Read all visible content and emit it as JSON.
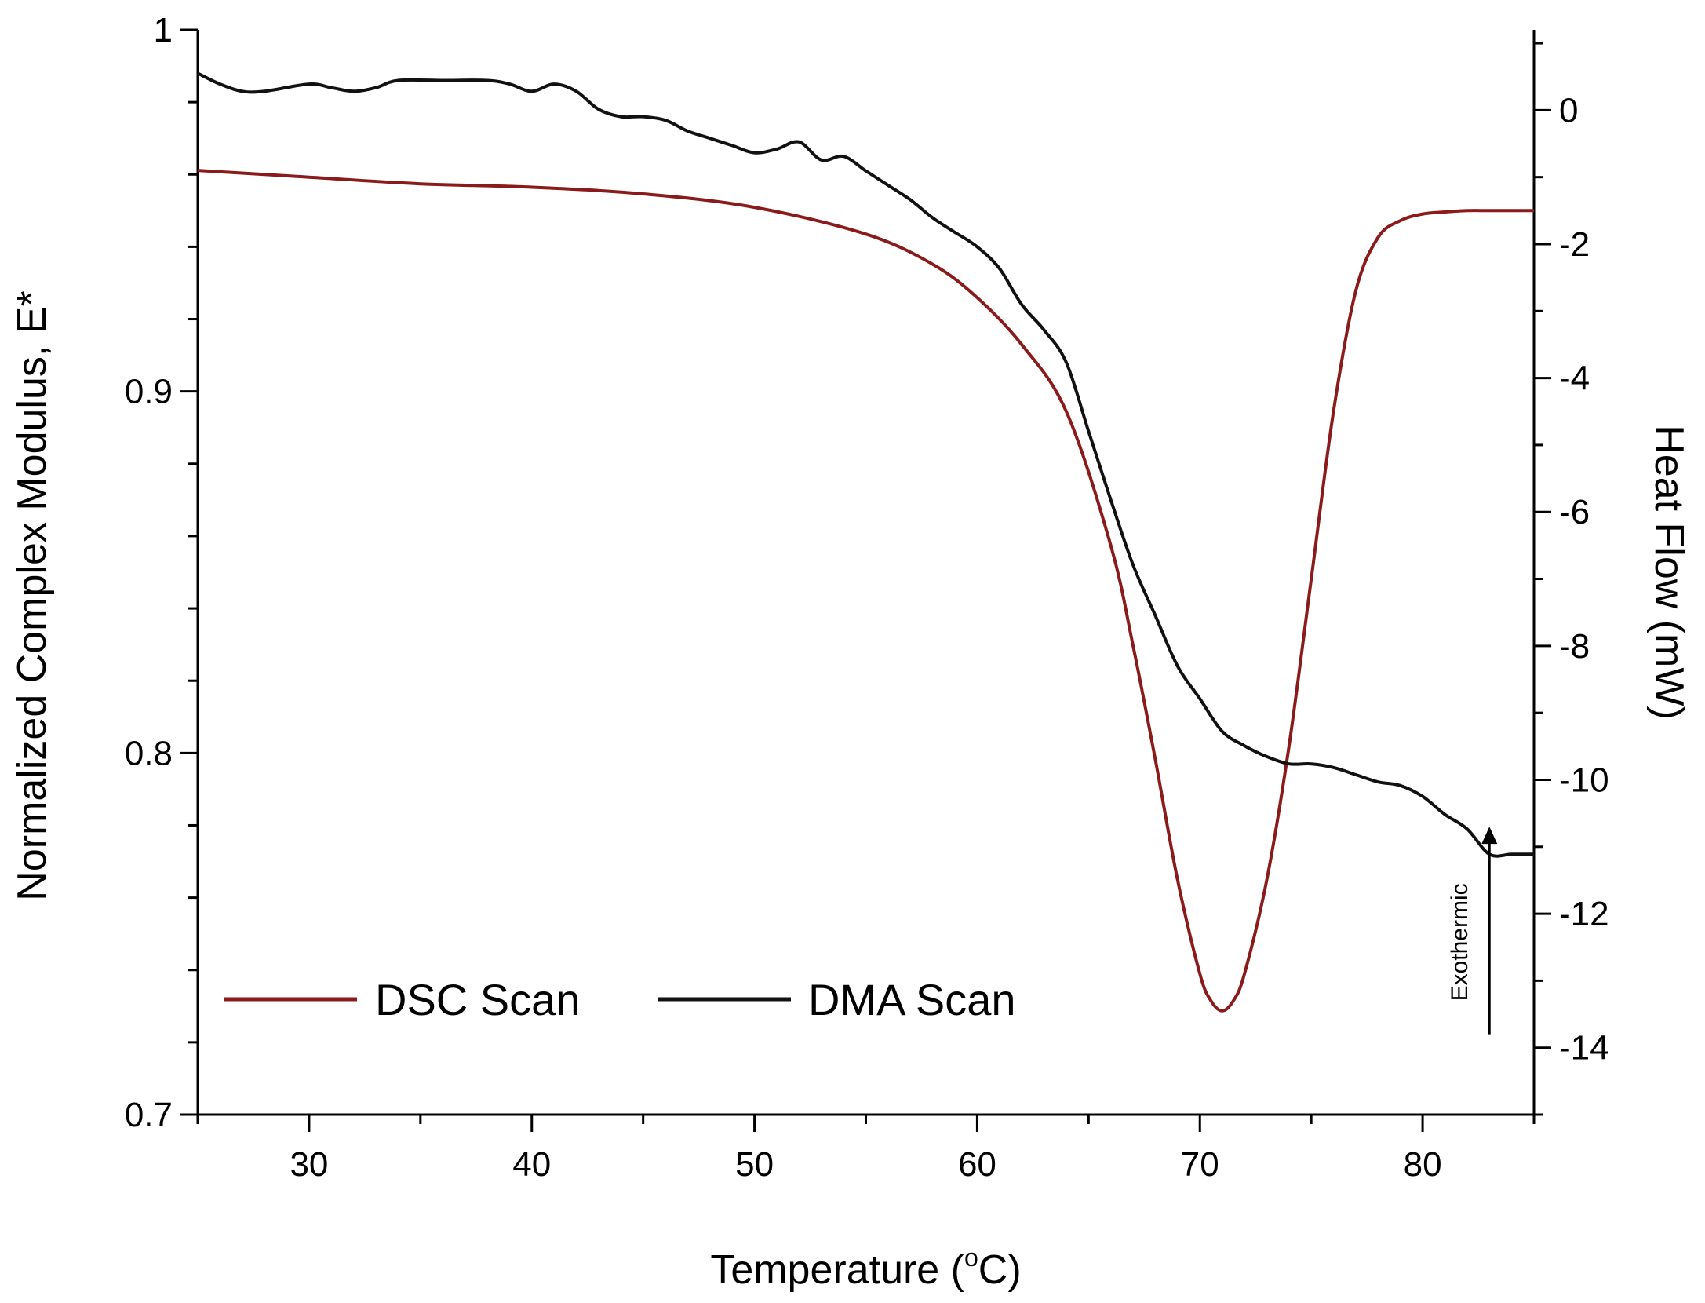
{
  "chart_data": {
    "type": "line",
    "title": "",
    "xlabel": "Temperature (°C)",
    "xlabel_parts": {
      "before": "Temperature (",
      "superscript": "o",
      "after": "C)"
    },
    "ylabel": "Normalized Complex Modulus, E*",
    "y2label": "Heat Flow (mW)",
    "xlim": [
      25,
      85
    ],
    "ylim": [
      0.7,
      1.0
    ],
    "y2lim": [
      -15,
      1.2
    ],
    "x_ticks": [
      30,
      40,
      50,
      60,
      70,
      80
    ],
    "x_tick_labels": [
      "30",
      "40",
      "50",
      "60",
      "70",
      "80"
    ],
    "y_ticks": [
      0.7,
      0.8,
      0.9,
      1.0
    ],
    "y_tick_labels": [
      "0.7",
      "0.8",
      "0.9",
      "1"
    ],
    "y2_ticks": [
      0,
      -2,
      -4,
      -6,
      -8,
      -10,
      -12,
      -14
    ],
    "y2_tick_labels": [
      "0",
      "-2",
      "-4",
      "-6",
      "-8",
      "-10",
      "-12",
      "-14"
    ],
    "grid": false,
    "legend_position": "bottom-left",
    "annotation": {
      "text": "Exothermic",
      "arrow": "up",
      "x": 83,
      "y2_from": -13.8,
      "y2_to": -10.7
    },
    "series": [
      {
        "name": "DSC Scan",
        "axis": "right",
        "color": "#8b1a1a",
        "x": [
          25,
          30,
          35,
          40,
          45,
          50,
          55,
          58,
          60,
          62,
          64,
          66,
          67,
          68,
          69,
          70,
          70.5,
          71,
          71.5,
          72,
          73,
          74,
          75,
          76,
          77,
          78,
          79,
          80,
          81,
          82,
          83,
          84,
          85
        ],
        "y": [
          -0.9,
          -1.0,
          -1.1,
          -1.15,
          -1.25,
          -1.45,
          -1.85,
          -2.3,
          -2.8,
          -3.5,
          -4.5,
          -6.5,
          -8.0,
          -9.7,
          -11.5,
          -12.9,
          -13.3,
          -13.45,
          -13.3,
          -12.9,
          -11.5,
          -9.5,
          -7.0,
          -4.5,
          -2.7,
          -1.9,
          -1.65,
          -1.55,
          -1.52,
          -1.5,
          -1.5,
          -1.5,
          -1.5
        ]
      },
      {
        "name": "DMA Scan",
        "axis": "left",
        "color": "#111111",
        "x": [
          25,
          26,
          27,
          28,
          30,
          31,
          32,
          33,
          34,
          36,
          38,
          39,
          40,
          41,
          42,
          43,
          44,
          45,
          46,
          47,
          48,
          49,
          50,
          51,
          52,
          53,
          54,
          55,
          56,
          57,
          58,
          59,
          60,
          61,
          62,
          63,
          64,
          65,
          66,
          67,
          68,
          69,
          70,
          71,
          72,
          73,
          74,
          75,
          76,
          77,
          78,
          79,
          80,
          81,
          82,
          83,
          84,
          85
        ],
        "y": [
          0.988,
          0.985,
          0.983,
          0.983,
          0.985,
          0.984,
          0.983,
          0.984,
          0.986,
          0.986,
          0.986,
          0.985,
          0.983,
          0.985,
          0.983,
          0.978,
          0.976,
          0.976,
          0.975,
          0.972,
          0.97,
          0.968,
          0.966,
          0.967,
          0.969,
          0.964,
          0.965,
          0.961,
          0.957,
          0.953,
          0.948,
          0.944,
          0.94,
          0.934,
          0.924,
          0.917,
          0.908,
          0.889,
          0.87,
          0.852,
          0.838,
          0.824,
          0.815,
          0.806,
          0.802,
          0.799,
          0.797,
          0.797,
          0.796,
          0.794,
          0.792,
          0.791,
          0.788,
          0.783,
          0.779,
          0.772,
          0.772,
          0.772
        ]
      }
    ]
  }
}
